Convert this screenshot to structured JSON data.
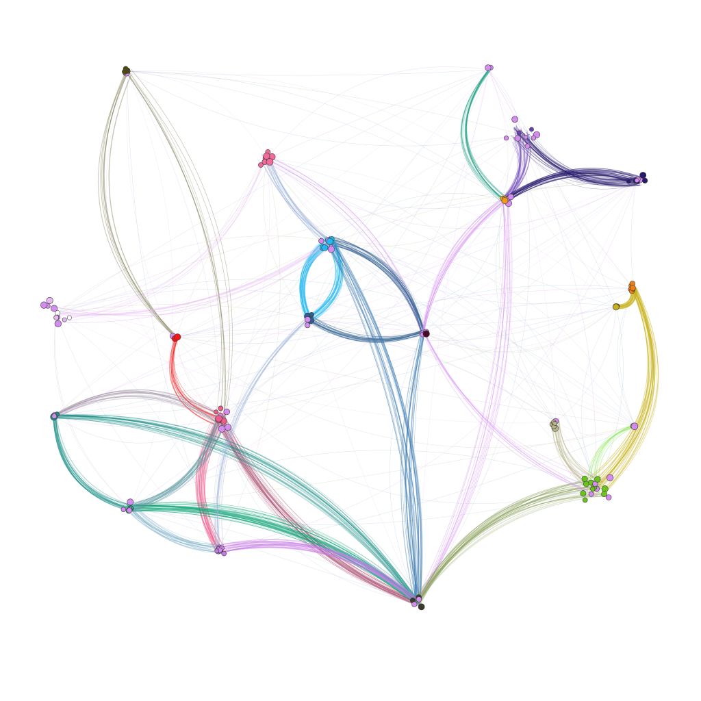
{
  "figure": {
    "type": "network-graph",
    "background": "#ffffff",
    "node_shared_color": "#d48cf0",
    "node_outline_color": "#3a3a3a"
  },
  "clusters": [
    {
      "id": "olive-top-left",
      "color": "#4d4a12"
    },
    {
      "id": "pink-top",
      "color": "#f06a9a"
    },
    {
      "id": "purple-top-right",
      "color": "#6a3fb5"
    },
    {
      "id": "navy-top-right",
      "color": "#281a6e"
    },
    {
      "id": "teal-top-right",
      "color": "#1f9e84"
    },
    {
      "id": "orange-top-right",
      "color": "#f39a1a"
    },
    {
      "id": "sky-blue-center",
      "color": "#22b8f0"
    },
    {
      "id": "steel-blue",
      "color": "#2f5f8f"
    },
    {
      "id": "maroon-hub",
      "color": "#4a0a2a"
    },
    {
      "id": "faint-left",
      "color": "#e6b8f2"
    },
    {
      "id": "red-left",
      "color": "#f01818"
    },
    {
      "id": "rose-center-left",
      "color": "#f05a8a"
    },
    {
      "id": "teal-left",
      "color": "#1a8f86"
    },
    {
      "id": "green-teal",
      "color": "#14a67a"
    },
    {
      "id": "violet-bottom",
      "color": "#c77ae6"
    },
    {
      "id": "dark-bottom-hub",
      "color": "#3a3a2a"
    },
    {
      "id": "lime-green-right",
      "color": "#6ac41a"
    },
    {
      "id": "mustard-right",
      "color": "#c8b21a"
    },
    {
      "id": "orange-right",
      "color": "#f07e12"
    },
    {
      "id": "light-green-right",
      "color": "#8ee65a"
    },
    {
      "id": "khaki-right",
      "color": "#b8b48a"
    }
  ],
  "edges": [
    {
      "from": "olive-top-left",
      "to": "red-left",
      "color": "#4d4a12",
      "weight": 2,
      "bend": 0.35
    },
    {
      "from": "olive-top-left",
      "to": "rose-center-left",
      "color": "#7d7a55",
      "weight": 2,
      "bend": -0.2
    },
    {
      "from": "pink-top",
      "to": "sky-blue-center",
      "color": "#9ab0d8",
      "weight": 5,
      "bend": 0.15
    },
    {
      "from": "pink-top",
      "to": "maroon-hub",
      "color": "#d48cf0",
      "weight": 2,
      "bend": -0.2
    },
    {
      "from": "pink-top",
      "to": "faint-left",
      "color": "#e6b8f2",
      "weight": 2,
      "bend": -0.3
    },
    {
      "from": "sky-blue-center",
      "to": "steel-blue",
      "color": "#22b8f0",
      "weight": 9,
      "bend": 0.4
    },
    {
      "from": "sky-blue-center",
      "to": "maroon-hub",
      "color": "#2f5f8f",
      "weight": 7,
      "bend": -0.3
    },
    {
      "from": "steel-blue",
      "to": "maroon-hub",
      "color": "#2f5f8f",
      "weight": 6,
      "bend": 0.25
    },
    {
      "from": "steel-blue",
      "to": "sky-blue-center",
      "color": "#22b8f0",
      "weight": 8,
      "bend": 0.45
    },
    {
      "from": "sky-blue-center",
      "to": "dark-bottom-hub",
      "color": "#3a7ab0",
      "weight": 6,
      "bend": -0.15
    },
    {
      "from": "maroon-hub",
      "to": "dark-bottom-hub",
      "color": "#3a7ab0",
      "weight": 4,
      "bend": 0.1
    },
    {
      "from": "purple-top-right",
      "to": "navy-top-right",
      "color": "#281a6e",
      "weight": 9,
      "bend": 0.3
    },
    {
      "from": "purple-top-right",
      "to": "orange-top-right",
      "color": "#6a3fb5",
      "weight": 7,
      "bend": -0.3
    },
    {
      "from": "teal-top-right",
      "to": "orange-top-right",
      "color": "#1f9e84",
      "weight": 4,
      "bend": 0.5
    },
    {
      "from": "orange-top-right",
      "to": "navy-top-right",
      "color": "#281a6e",
      "weight": 8,
      "bend": -0.25
    },
    {
      "from": "orange-top-right",
      "to": "maroon-hub",
      "color": "#d48cf0",
      "weight": 4,
      "bend": 0.2
    },
    {
      "from": "orange-top-right",
      "to": "dark-bottom-hub",
      "color": "#d48cf0",
      "weight": 3,
      "bend": -0.15
    },
    {
      "from": "red-left",
      "to": "rose-center-left",
      "color": "#f01818",
      "weight": 4,
      "bend": 0.5
    },
    {
      "from": "rose-center-left",
      "to": "dark-bottom-hub",
      "color": "#b05a7a",
      "weight": 8,
      "bend": 0.2
    },
    {
      "from": "rose-center-left",
      "to": "violet-bottom",
      "color": "#f05a8a",
      "weight": 8,
      "bend": 0.3
    },
    {
      "from": "teal-left",
      "to": "green-teal",
      "color": "#1a8f86",
      "weight": 7,
      "bend": 0.35
    },
    {
      "from": "teal-left",
      "to": "dark-bottom-hub",
      "color": "#1a8f86",
      "weight": 7,
      "bend": -0.25
    },
    {
      "from": "green-teal",
      "to": "dark-bottom-hub",
      "color": "#14a67a",
      "weight": 9,
      "bend": -0.2
    },
    {
      "from": "green-teal",
      "to": "rose-center-left",
      "color": "#5a9aa0",
      "weight": 6,
      "bend": 0.3
    },
    {
      "from": "violet-bottom",
      "to": "dark-bottom-hub",
      "color": "#c77ae6",
      "weight": 6,
      "bend": -0.25
    },
    {
      "from": "green-teal",
      "to": "violet-bottom",
      "color": "#7fb0c8",
      "weight": 6,
      "bend": 0.2
    },
    {
      "from": "lime-green-right",
      "to": "dark-bottom-hub",
      "color": "#8aa05a",
      "weight": 8,
      "bend": 0.25
    },
    {
      "from": "mustard-right",
      "to": "orange-right",
      "color": "#c8b21a",
      "weight": 9,
      "bend": 0.55
    },
    {
      "from": "orange-right",
      "to": "lime-green-right",
      "color": "#c8b21a",
      "weight": 8,
      "bend": -0.35
    },
    {
      "from": "light-green-right",
      "to": "lime-green-right",
      "color": "#8ee65a",
      "weight": 4,
      "bend": 0.4
    },
    {
      "from": "khaki-right",
      "to": "lime-green-right",
      "color": "#b8b48a",
      "weight": 5,
      "bend": 0.3
    },
    {
      "from": "maroon-hub",
      "to": "lime-green-right",
      "color": "#d48cf0",
      "weight": 2,
      "bend": 0.2
    },
    {
      "from": "steel-blue",
      "to": "violet-bottom",
      "color": "#9ab0d8",
      "weight": 3,
      "bend": 0.25
    },
    {
      "from": "faint-left",
      "to": "sky-blue-center",
      "color": "#e6b8f2",
      "weight": 2,
      "bend": 0.2
    },
    {
      "from": "teal-left",
      "to": "rose-center-left",
      "color": "#9a8aa0",
      "weight": 5,
      "bend": -0.3
    }
  ]
}
